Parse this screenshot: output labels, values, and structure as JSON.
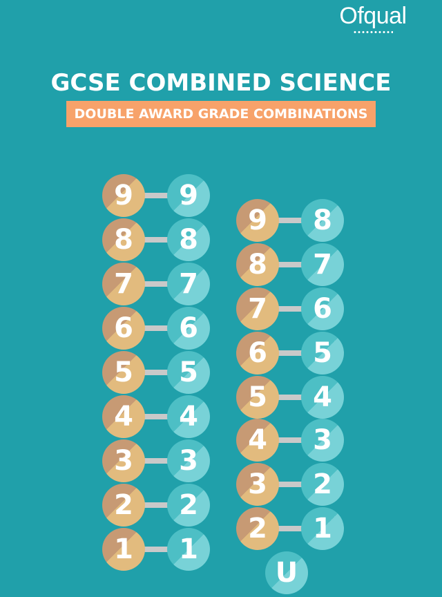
{
  "logo": {
    "text": "Ofqual"
  },
  "title": "GCSE COMBINED SCIENCE",
  "subtitle": "DOUBLE AWARD GRADE COMBINATIONS",
  "colors": {
    "background": "#20a0aa",
    "subtitle_band": "#f7a26a",
    "left_circle": "#e2bb7e",
    "right_circle": "#78d2d7",
    "connector": "#c9c9c9"
  },
  "column_a": [
    {
      "left": "9",
      "right": "9"
    },
    {
      "left": "8",
      "right": "8"
    },
    {
      "left": "7",
      "right": "7"
    },
    {
      "left": "6",
      "right": "6"
    },
    {
      "left": "5",
      "right": "5"
    },
    {
      "left": "4",
      "right": "4"
    },
    {
      "left": "3",
      "right": "3"
    },
    {
      "left": "2",
      "right": "2"
    },
    {
      "left": "1",
      "right": "1"
    }
  ],
  "column_b": [
    {
      "left": "9",
      "right": "8"
    },
    {
      "left": "8",
      "right": "7"
    },
    {
      "left": "7",
      "right": "6"
    },
    {
      "left": "6",
      "right": "5"
    },
    {
      "left": "5",
      "right": "4"
    },
    {
      "left": "4",
      "right": "3"
    },
    {
      "left": "3",
      "right": "2"
    },
    {
      "left": "2",
      "right": "1"
    }
  ],
  "ungraded": "U"
}
